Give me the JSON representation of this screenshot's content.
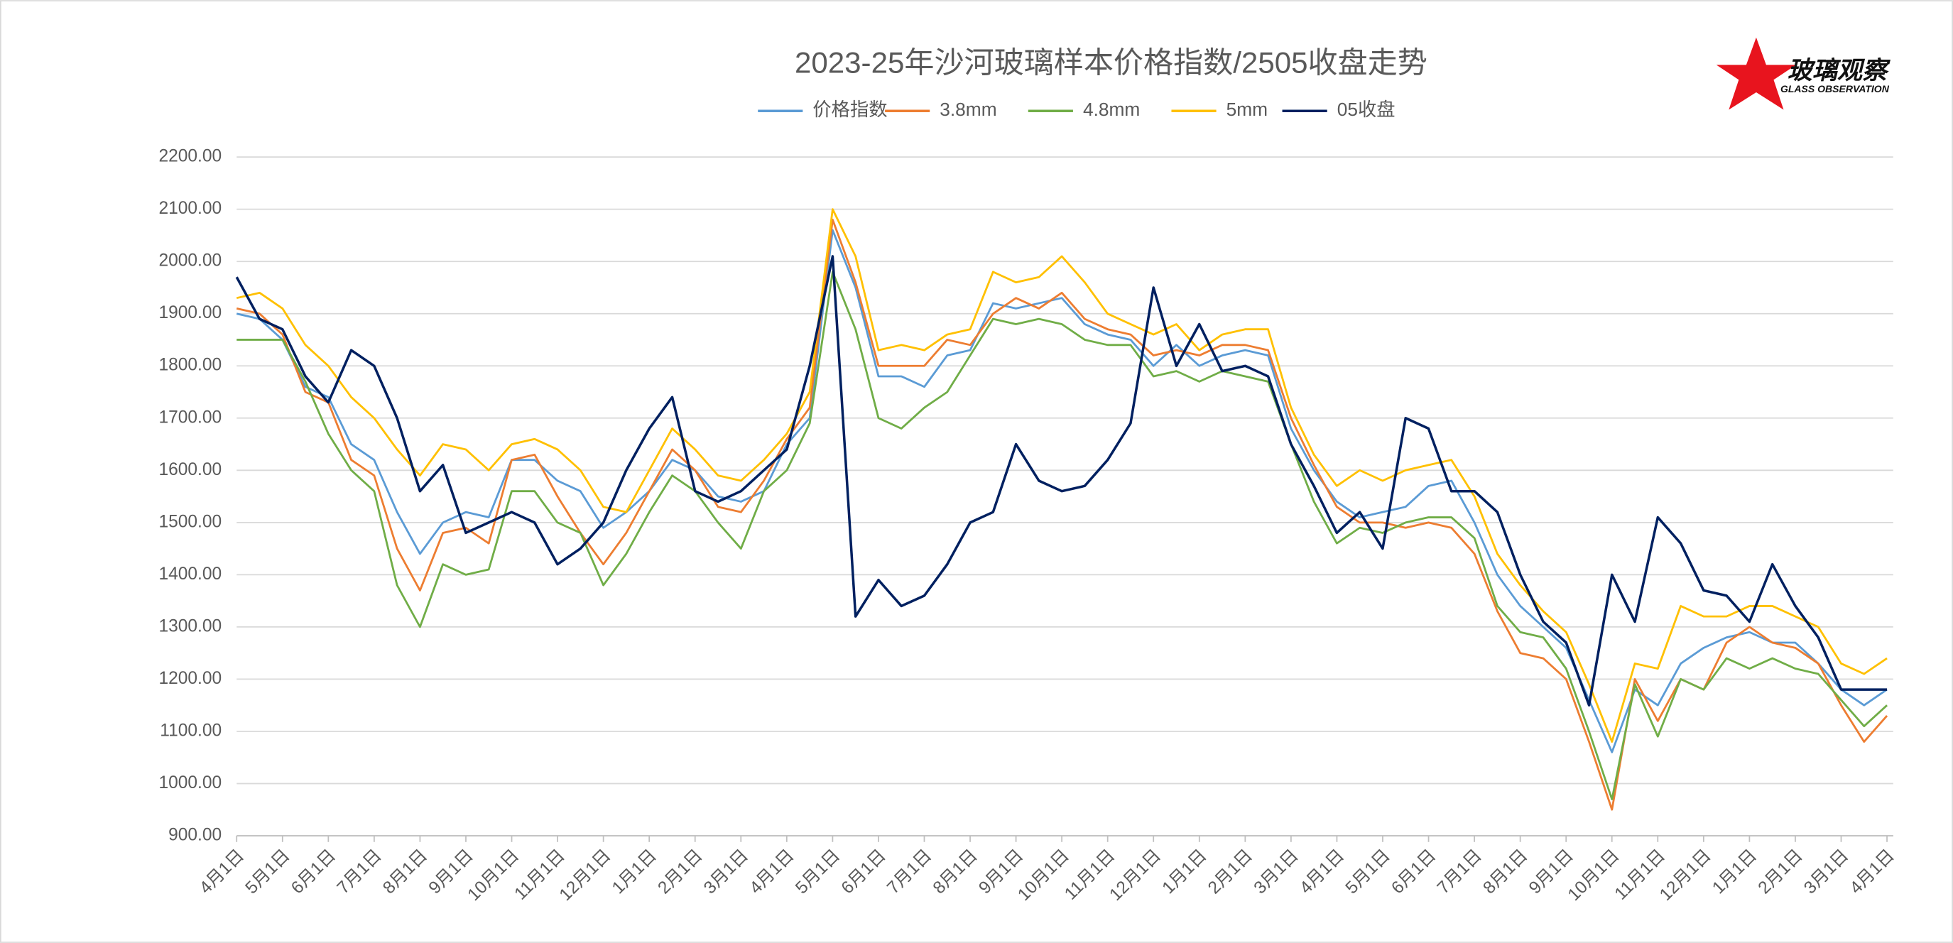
{
  "chart_data": {
    "type": "line",
    "title": "2023-25年沙河玻璃样本价格指数/2505收盘走势",
    "logo": {
      "name": "玻璃观察",
      "subtitle": "GLASS OBSERVATION"
    },
    "legend": "top",
    "grid": true,
    "ylim": [
      900,
      2200
    ],
    "yticks": [
      {
        "value": 900,
        "label": "900.00"
      },
      {
        "value": 1000,
        "label": "1000.00"
      },
      {
        "value": 1100,
        "label": "1100.00"
      },
      {
        "value": 1200,
        "label": "1200.00"
      },
      {
        "value": 1300,
        "label": "1300.00"
      },
      {
        "value": 1400,
        "label": "1400.00"
      },
      {
        "value": 1500,
        "label": "1500.00"
      },
      {
        "value": 1600,
        "label": "1600.00"
      },
      {
        "value": 1700,
        "label": "1700.00"
      },
      {
        "value": 1800,
        "label": "1800.00"
      },
      {
        "value": 1900,
        "label": "1900.00"
      },
      {
        "value": 2000,
        "label": "2000.00"
      },
      {
        "value": 2100,
        "label": "2100.00"
      },
      {
        "value": 2200,
        "label": "2200.00"
      }
    ],
    "categories": [
      "4月1日",
      null,
      "5月1日",
      null,
      "6月1日",
      null,
      "7月1日",
      null,
      "8月1日",
      null,
      "9月1日",
      null,
      "10月1日",
      null,
      "11月1日",
      null,
      "12月1日",
      null,
      "1月1日",
      null,
      "2月1日",
      null,
      "3月1日",
      null,
      "4月1日",
      null,
      "5月1日",
      null,
      "6月1日",
      null,
      "7月1日",
      null,
      "8月1日",
      null,
      "9月1日",
      null,
      "10月1日",
      null,
      "11月1日",
      null,
      "12月1日",
      null,
      "1月1日",
      null,
      "2月1日",
      null,
      "3月1日",
      null,
      "4月1日",
      null,
      "5月1日",
      null,
      "6月1日",
      null,
      "7月1日",
      null,
      "8月1日",
      null,
      "9月1日",
      null,
      "10月1日",
      null,
      "11月1日",
      null,
      "12月1日",
      null,
      "1月1日",
      null,
      "2月1日",
      null,
      "3月1日",
      null,
      "4月1日"
    ],
    "series": [
      {
        "name": "价格指数",
        "color": "#5b9bd5",
        "values": [
          1900,
          1890,
          1850,
          1760,
          1740,
          1650,
          1620,
          1520,
          1440,
          1500,
          1520,
          1510,
          1620,
          1620,
          1580,
          1560,
          1490,
          1520,
          1560,
          1620,
          1600,
          1550,
          1540,
          1560,
          1650,
          1700,
          2060,
          1950,
          1780,
          1780,
          1760,
          1820,
          1830,
          1920,
          1910,
          1920,
          1930,
          1880,
          1860,
          1850,
          1800,
          1840,
          1800,
          1820,
          1830,
          1820,
          1680,
          1600,
          1540,
          1510,
          1520,
          1530,
          1570,
          1580,
          1500,
          1400,
          1340,
          1300,
          1260,
          1160,
          1060,
          1180,
          1150,
          1230,
          1260,
          1280,
          1290,
          1270,
          1270,
          1230,
          1180,
          1150,
          1180
        ]
      },
      {
        "name": "3.8mm",
        "color": "#ed7d31",
        "values": [
          1910,
          1900,
          1860,
          1750,
          1730,
          1620,
          1590,
          1450,
          1370,
          1480,
          1490,
          1460,
          1620,
          1630,
          1550,
          1480,
          1420,
          1480,
          1560,
          1640,
          1600,
          1530,
          1520,
          1580,
          1660,
          1720,
          2080,
          1960,
          1800,
          1800,
          1800,
          1850,
          1840,
          1900,
          1930,
          1910,
          1940,
          1890,
          1870,
          1860,
          1820,
          1830,
          1820,
          1840,
          1840,
          1830,
          1700,
          1610,
          1530,
          1500,
          1500,
          1490,
          1500,
          1490,
          1440,
          1330,
          1250,
          1240,
          1200,
          1080,
          950,
          1200,
          1120,
          1200,
          1180,
          1270,
          1300,
          1270,
          1260,
          1230,
          1150,
          1080,
          1130
        ]
      },
      {
        "name": "4.8mm",
        "color": "#70ad47",
        "values": [
          1850,
          1850,
          1850,
          1770,
          1670,
          1600,
          1560,
          1380,
          1300,
          1420,
          1400,
          1410,
          1560,
          1560,
          1500,
          1480,
          1380,
          1440,
          1520,
          1590,
          1560,
          1500,
          1450,
          1560,
          1600,
          1690,
          1980,
          1870,
          1700,
          1680,
          1720,
          1750,
          1820,
          1890,
          1880,
          1890,
          1880,
          1850,
          1840,
          1840,
          1780,
          1790,
          1770,
          1790,
          1780,
          1770,
          1650,
          1540,
          1460,
          1490,
          1480,
          1500,
          1510,
          1510,
          1470,
          1340,
          1290,
          1280,
          1220,
          1100,
          970,
          1190,
          1090,
          1200,
          1180,
          1240,
          1220,
          1240,
          1220,
          1210,
          1160,
          1110,
          1150
        ]
      },
      {
        "name": "5mm",
        "color": "#ffc000",
        "values": [
          1930,
          1940,
          1910,
          1840,
          1800,
          1740,
          1700,
          1640,
          1590,
          1650,
          1640,
          1600,
          1650,
          1660,
          1640,
          1600,
          1530,
          1520,
          1600,
          1680,
          1640,
          1590,
          1580,
          1620,
          1670,
          1750,
          2100,
          2010,
          1830,
          1840,
          1830,
          1860,
          1870,
          1980,
          1960,
          1970,
          2010,
          1960,
          1900,
          1880,
          1860,
          1880,
          1830,
          1860,
          1870,
          1870,
          1720,
          1630,
          1570,
          1600,
          1580,
          1600,
          1610,
          1620,
          1550,
          1440,
          1380,
          1330,
          1290,
          1190,
          1080,
          1230,
          1220,
          1340,
          1320,
          1320,
          1340,
          1340,
          1320,
          1300,
          1230,
          1210,
          1240
        ]
      },
      {
        "name": "05收盘",
        "color": "#002060",
        "values": [
          1970,
          1890,
          1870,
          1780,
          1730,
          1830,
          1800,
          1700,
          1560,
          1610,
          1480,
          1500,
          1520,
          1500,
          1420,
          1450,
          1500,
          1600,
          1680,
          1740,
          1560,
          1540,
          1560,
          1600,
          1640,
          1800,
          2010,
          1320,
          1390,
          1340,
          1360,
          1420,
          1500,
          1520,
          1650,
          1580,
          1560,
          1570,
          1620,
          1690,
          1950,
          1800,
          1880,
          1790,
          1800,
          1780,
          1650,
          1570,
          1480,
          1520,
          1450,
          1700,
          1680,
          1560,
          1560,
          1520,
          1400,
          1310,
          1270,
          1150,
          1400,
          1310,
          1510,
          1460,
          1370,
          1360,
          1310,
          1420,
          1340,
          1280,
          1180,
          1180,
          1180
        ]
      }
    ]
  }
}
